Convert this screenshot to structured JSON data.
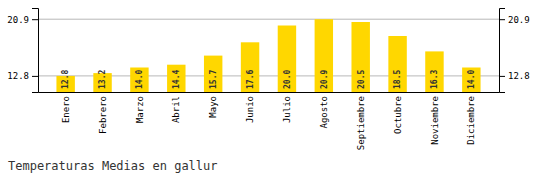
{
  "chart_data": {
    "type": "bar",
    "title": "Temperaturas Medias en gallur",
    "categories": [
      "Enero",
      "Febrero",
      "Marzo",
      "Abril",
      "Mayo",
      "Junio",
      "Julio",
      "Agosto",
      "Septiembre",
      "Octubre",
      "Noviembre",
      "Diciembre"
    ],
    "values": [
      12.8,
      13.2,
      14.0,
      14.4,
      15.7,
      17.6,
      20.0,
      20.9,
      20.5,
      18.5,
      16.3,
      14.0
    ],
    "value_labels": [
      "12.8",
      "13.2",
      "14.0",
      "14.4",
      "15.7",
      "17.6",
      "20.0",
      "20.9",
      "20.5",
      "18.5",
      "16.3",
      "14.0"
    ],
    "color": "#FFD700",
    "ylim": [
      10.5,
      22.5
    ],
    "yticks": [
      12.8,
      20.9
    ],
    "y2lim": [
      10.5,
      22.5
    ],
    "y2ticks": [
      12.8,
      20.9
    ],
    "grid": true,
    "data_labels": true
  }
}
